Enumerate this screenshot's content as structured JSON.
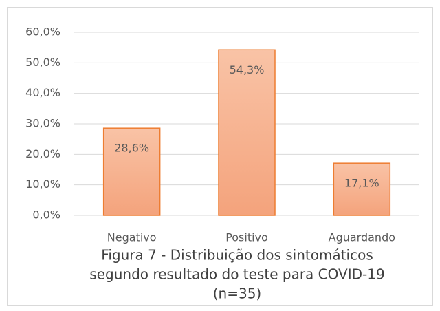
{
  "chart_data": {
    "type": "bar",
    "title": [
      "Figura 7 - Distribuição dos sintomáticos",
      "segundo resultado do teste para COVID-19",
      "(n=35)"
    ],
    "categories": [
      "Negativo",
      "Positivo",
      "Aguardando"
    ],
    "values": [
      28.6,
      54.3,
      17.1
    ],
    "value_labels": [
      "28,6%",
      "54,3%",
      "17,1%"
    ],
    "color": "#f6b08e",
    "edgecolor": "#ed7d31",
    "ylim": [
      0,
      60
    ],
    "yticks": [
      {
        "value": 0,
        "label": "0,0%"
      },
      {
        "value": 10,
        "label": "10,0%"
      },
      {
        "value": 20,
        "label": "20,0%"
      },
      {
        "value": 30,
        "label": "30,0%"
      },
      {
        "value": 40,
        "label": "40,0%"
      },
      {
        "value": 50,
        "label": "50,0%"
      },
      {
        "value": 60,
        "label": "60,0%"
      }
    ],
    "grid": true
  }
}
